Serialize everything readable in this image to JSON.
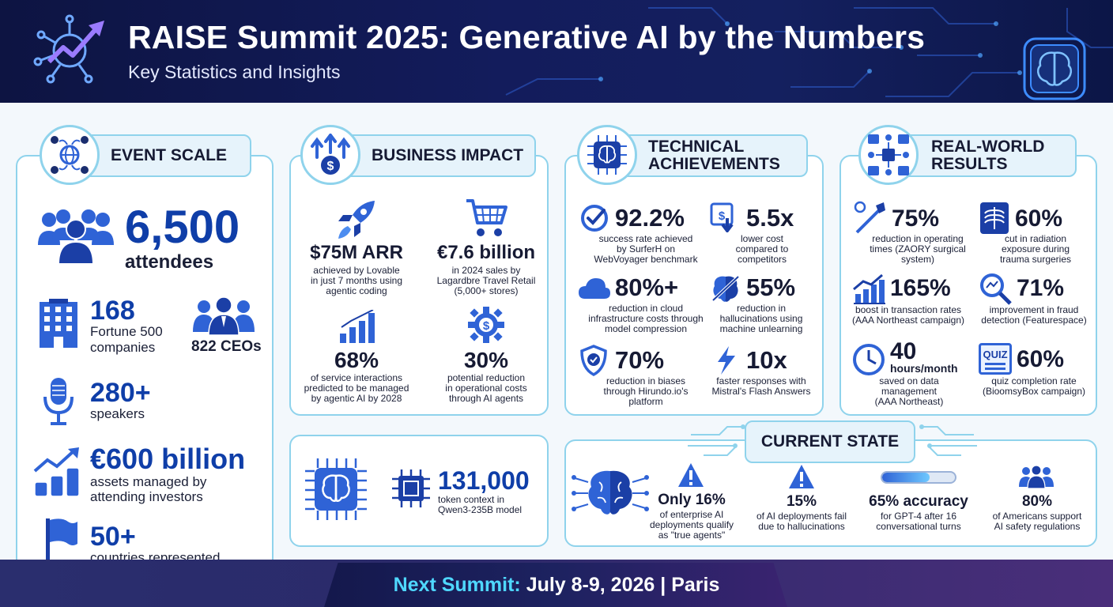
{
  "header": {
    "title": "RAISE Summit 2025: Generative AI by the Numbers",
    "subtitle": "Key Statistics and Insights"
  },
  "event_scale": {
    "title": "EVENT SCALE",
    "attendees": {
      "value": "6,500",
      "label": "attendees"
    },
    "fortune": {
      "value": "168",
      "label_line1": "Fortune 500",
      "label_line2": "companies"
    },
    "ceos": {
      "label": "822 CEOs"
    },
    "speakers": {
      "value": "280+",
      "label": "speakers"
    },
    "assets": {
      "value": "€600 billion",
      "label_line1": "assets managed by",
      "label_line2": "attending investors"
    },
    "countries": {
      "value": "50+",
      "label": "countries represented"
    }
  },
  "business_impact": {
    "title": "BUSINESS IMPACT",
    "items": [
      {
        "value": "$75M ARR",
        "lines": [
          "achieved by Lovable",
          "in just 7 months using",
          "agentic coding"
        ]
      },
      {
        "value": "€7.6 billion",
        "lines": [
          "in 2024 sales by",
          "Lagardbre Travel Retail",
          "(5,000+ stores)"
        ]
      },
      {
        "value": "68%",
        "lines": [
          "of service interactions",
          "predicted to be managed",
          "by agentic AI by 2028"
        ]
      },
      {
        "value": "30%",
        "lines": [
          "potential reduction",
          "in operational costs",
          "through AI agents"
        ]
      }
    ]
  },
  "token": {
    "value": "131,000",
    "lines": [
      "token context in",
      "Qwen3-235B model"
    ]
  },
  "technical": {
    "title_line1": "TECHNICAL",
    "title_line2": "ACHIEVEMENTS",
    "items": [
      {
        "value": "92.2%",
        "lines": [
          "success rate achieved",
          "by SurferH on",
          "WebVoyager benchmark"
        ]
      },
      {
        "value": "5.5x",
        "lines": [
          "lower cost",
          "compared to",
          "competitors"
        ]
      },
      {
        "value": "80%+",
        "lines": [
          "reduction in cloud",
          "infrastructure costs through",
          "model compression"
        ]
      },
      {
        "value": "55%",
        "lines": [
          "reduction in",
          "hallucinations using",
          "machine unlearning"
        ]
      },
      {
        "value": "70%",
        "lines": [
          "reduction in biases",
          "through Hirundo.io's",
          "platform"
        ]
      },
      {
        "value": "10x",
        "lines": [
          "faster responses with",
          "Mistral's Flash Answers"
        ]
      }
    ]
  },
  "real_world": {
    "title_line1": "REAL-WORLD",
    "title_line2": "RESULTS",
    "items": [
      {
        "value": "75%",
        "lines": [
          "reduction in operating",
          "times (ZAORY surgical",
          "system)"
        ]
      },
      {
        "value": "60%",
        "lines": [
          "cut in radiation",
          "exposure during",
          "trauma surgeries"
        ]
      },
      {
        "value": "165%",
        "lines": [
          "boost in transaction rates",
          "(AAA Northeast campaign)"
        ]
      },
      {
        "value": "71%",
        "lines": [
          "improvement in fraud",
          "detection (Featurespace)"
        ]
      },
      {
        "value": "40",
        "unit": "hours/month",
        "lines": [
          "saved on data",
          "management",
          "(AAA Northeast)"
        ]
      },
      {
        "value": "60%",
        "lines": [
          "quiz completion rate",
          "(BioomsyBox campaign)"
        ]
      }
    ],
    "quiz_icon_text": "QUIZ"
  },
  "current_state": {
    "title": "CURRENT STATE",
    "items": [
      {
        "value": "Only 16%",
        "lines": [
          "of enterprise AI",
          "deployments qualify",
          "as \"true agents\""
        ]
      },
      {
        "value": "15%",
        "lines": [
          "of AI deployments fail",
          "due to hallucinations"
        ]
      },
      {
        "value": "65% accuracy",
        "lines": [
          "for GPT-4 after 16",
          "conversational turns"
        ],
        "progress": 0.65
      },
      {
        "value": "80%",
        "lines": [
          "of Americans support",
          "AI safety regulations"
        ]
      }
    ]
  },
  "footer": {
    "label": "Next Summit:",
    "date": "July 8-9, 2026",
    "separator": "|",
    "city": "Paris"
  },
  "colors": {
    "header_bg": "#131c5c",
    "accent_blue": "#0f3ea8",
    "icon_blue": "#2f63d6",
    "panel_border": "#8fd3ec",
    "footer_accent": "#4fd8ff"
  }
}
